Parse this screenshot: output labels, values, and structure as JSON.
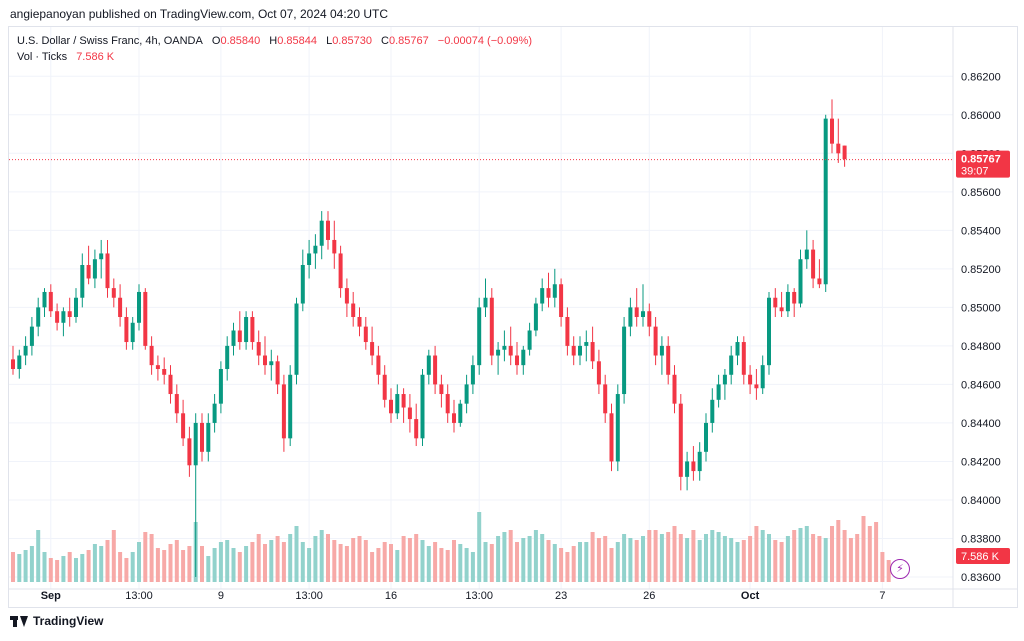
{
  "header": {
    "published": "angiepanoyan published on TradingView.com, Oct 07, 2024 04:20 UTC"
  },
  "legend": {
    "symbol": "U.S. Dollar / Swiss Franc, 4h, OANDA",
    "o_label": "O",
    "o": "0.85840",
    "h_label": "H",
    "h": "0.85844",
    "l_label": "L",
    "l": "0.85730",
    "c_label": "C",
    "c": "0.85767",
    "change": "−0.00074 (−0.09%)",
    "vol_label": "Vol · Ticks",
    "vol": "7.586 K"
  },
  "price_tag": {
    "price": "0.85767",
    "countdown": "39:07"
  },
  "volume_tag": "7.586 K",
  "footer": {
    "brand": "TradingView"
  },
  "colors": {
    "up": "#089981",
    "down": "#f23645",
    "up_vol": "#92d2cc",
    "down_vol": "#f7a9a7",
    "grid": "#f0f3fa",
    "text": "#131722"
  },
  "icons": {
    "alert": "lightning-icon",
    "logo": "tradingview-logo-icon"
  },
  "chart_data": {
    "type": "candlestick",
    "symbol": "U.S. Dollar / Swiss Franc",
    "timeframe": "4h",
    "ylim": [
      0.836,
      0.863
    ],
    "y_ticks": [
      "0.86200",
      "0.86000",
      "0.85800",
      "0.85600",
      "0.85400",
      "0.85200",
      "0.85000",
      "0.84800",
      "0.84600",
      "0.84400",
      "0.84200",
      "0.84000",
      "0.83800",
      "0.83600"
    ],
    "x_ticks": [
      {
        "label": "Sep",
        "index": 6
      },
      {
        "label": "13:00",
        "index": 20
      },
      {
        "label": "9",
        "index": 33
      },
      {
        "label": "13:00",
        "index": 47
      },
      {
        "label": "16",
        "index": 60
      },
      {
        "label": "13:00",
        "index": 74
      },
      {
        "label": "23",
        "index": 87
      },
      {
        "label": "26",
        "index": 101
      },
      {
        "label": "Oct",
        "index": 117
      },
      {
        "label": "7",
        "index": 138
      }
    ],
    "last_price": 0.85767,
    "candles": [
      [
        0.8473,
        0.848,
        0.8465,
        0.8468
      ],
      [
        0.8468,
        0.8478,
        0.8463,
        0.8475
      ],
      [
        0.8475,
        0.8485,
        0.847,
        0.848
      ],
      [
        0.848,
        0.8495,
        0.8475,
        0.849
      ],
      [
        0.849,
        0.8505,
        0.8485,
        0.85
      ],
      [
        0.85,
        0.851,
        0.8495,
        0.8508
      ],
      [
        0.8508,
        0.8512,
        0.8495,
        0.8498
      ],
      [
        0.8498,
        0.8502,
        0.8488,
        0.8492
      ],
      [
        0.8492,
        0.85,
        0.8485,
        0.8498
      ],
      [
        0.8498,
        0.8505,
        0.849,
        0.8495
      ],
      [
        0.8495,
        0.851,
        0.8492,
        0.8505
      ],
      [
        0.8505,
        0.8528,
        0.85,
        0.8522
      ],
      [
        0.8522,
        0.8532,
        0.8512,
        0.8515
      ],
      [
        0.8515,
        0.853,
        0.851,
        0.8525
      ],
      [
        0.8525,
        0.8535,
        0.8515,
        0.8528
      ],
      [
        0.8528,
        0.8535,
        0.8505,
        0.851
      ],
      [
        0.851,
        0.8515,
        0.85,
        0.8505
      ],
      [
        0.8505,
        0.8512,
        0.849,
        0.8495
      ],
      [
        0.8495,
        0.85,
        0.8478,
        0.8482
      ],
      [
        0.8482,
        0.8495,
        0.8478,
        0.8492
      ],
      [
        0.8492,
        0.8512,
        0.8488,
        0.8508
      ],
      [
        0.8508,
        0.851,
        0.8478,
        0.848
      ],
      [
        0.848,
        0.8485,
        0.8465,
        0.847
      ],
      [
        0.847,
        0.8475,
        0.8462,
        0.8468
      ],
      [
        0.8468,
        0.8474,
        0.846,
        0.8465
      ],
      [
        0.8465,
        0.847,
        0.845,
        0.8455
      ],
      [
        0.8455,
        0.846,
        0.844,
        0.8445
      ],
      [
        0.8445,
        0.8452,
        0.8428,
        0.8432
      ],
      [
        0.8432,
        0.8438,
        0.8412,
        0.8418
      ],
      [
        0.8418,
        0.8445,
        0.836,
        0.844
      ],
      [
        0.844,
        0.8445,
        0.842,
        0.8425
      ],
      [
        0.8425,
        0.8445,
        0.842,
        0.844
      ],
      [
        0.844,
        0.8455,
        0.8435,
        0.845
      ],
      [
        0.845,
        0.8472,
        0.8445,
        0.8468
      ],
      [
        0.8468,
        0.8485,
        0.8462,
        0.848
      ],
      [
        0.848,
        0.8492,
        0.8475,
        0.8488
      ],
      [
        0.8488,
        0.8498,
        0.8478,
        0.8482
      ],
      [
        0.8482,
        0.8498,
        0.8478,
        0.8495
      ],
      [
        0.8495,
        0.8498,
        0.8478,
        0.8482
      ],
      [
        0.8482,
        0.8488,
        0.847,
        0.8475
      ],
      [
        0.8475,
        0.8485,
        0.8465,
        0.847
      ],
      [
        0.847,
        0.8478,
        0.8462,
        0.8472
      ],
      [
        0.8472,
        0.8475,
        0.8455,
        0.846
      ],
      [
        0.846,
        0.8465,
        0.8425,
        0.8432
      ],
      [
        0.8432,
        0.847,
        0.8428,
        0.8465
      ],
      [
        0.8465,
        0.8505,
        0.846,
        0.8502
      ],
      [
        0.8502,
        0.853,
        0.8498,
        0.8522
      ],
      [
        0.8522,
        0.8535,
        0.8515,
        0.8528
      ],
      [
        0.8528,
        0.8538,
        0.852,
        0.8532
      ],
      [
        0.8532,
        0.855,
        0.8525,
        0.8545
      ],
      [
        0.8545,
        0.855,
        0.853,
        0.8535
      ],
      [
        0.8535,
        0.8545,
        0.852,
        0.8528
      ],
      [
        0.8528,
        0.8532,
        0.8505,
        0.851
      ],
      [
        0.851,
        0.8515,
        0.8495,
        0.8502
      ],
      [
        0.8502,
        0.8508,
        0.849,
        0.8495
      ],
      [
        0.8495,
        0.85,
        0.8485,
        0.849
      ],
      [
        0.849,
        0.8495,
        0.8478,
        0.8482
      ],
      [
        0.8482,
        0.849,
        0.847,
        0.8475
      ],
      [
        0.8475,
        0.848,
        0.846,
        0.8465
      ],
      [
        0.8465,
        0.847,
        0.8448,
        0.8452
      ],
      [
        0.8452,
        0.8458,
        0.844,
        0.8445
      ],
      [
        0.8445,
        0.846,
        0.8442,
        0.8455
      ],
      [
        0.8455,
        0.8458,
        0.844,
        0.8448
      ],
      [
        0.8448,
        0.8455,
        0.8435,
        0.8442
      ],
      [
        0.8442,
        0.845,
        0.8428,
        0.8432
      ],
      [
        0.8432,
        0.8468,
        0.8428,
        0.8465
      ],
      [
        0.8465,
        0.8478,
        0.846,
        0.8475
      ],
      [
        0.8475,
        0.848,
        0.8455,
        0.846
      ],
      [
        0.846,
        0.8465,
        0.8448,
        0.8455
      ],
      [
        0.8455,
        0.846,
        0.844,
        0.8445
      ],
      [
        0.8445,
        0.8452,
        0.8435,
        0.844
      ],
      [
        0.844,
        0.8452,
        0.8438,
        0.845
      ],
      [
        0.845,
        0.8465,
        0.8445,
        0.846
      ],
      [
        0.846,
        0.8475,
        0.8455,
        0.847
      ],
      [
        0.847,
        0.8505,
        0.8465,
        0.85
      ],
      [
        0.85,
        0.8515,
        0.8495,
        0.8505
      ],
      [
        0.8505,
        0.851,
        0.847,
        0.8475
      ],
      [
        0.8475,
        0.8482,
        0.8465,
        0.8478
      ],
      [
        0.8478,
        0.8488,
        0.8472,
        0.848
      ],
      [
        0.848,
        0.849,
        0.847,
        0.8475
      ],
      [
        0.8475,
        0.8482,
        0.8465,
        0.847
      ],
      [
        0.847,
        0.848,
        0.8465,
        0.8478
      ],
      [
        0.8478,
        0.8492,
        0.8475,
        0.8488
      ],
      [
        0.8488,
        0.8505,
        0.8485,
        0.8502
      ],
      [
        0.8502,
        0.8515,
        0.8498,
        0.851
      ],
      [
        0.851,
        0.8518,
        0.85,
        0.8505
      ],
      [
        0.8505,
        0.852,
        0.85,
        0.8512
      ],
      [
        0.8512,
        0.8515,
        0.849,
        0.8495
      ],
      [
        0.8495,
        0.85,
        0.8475,
        0.848
      ],
      [
        0.848,
        0.8485,
        0.847,
        0.8475
      ],
      [
        0.8475,
        0.8485,
        0.847,
        0.848
      ],
      [
        0.848,
        0.8488,
        0.8472,
        0.8482
      ],
      [
        0.8482,
        0.849,
        0.8468,
        0.8472
      ],
      [
        0.8472,
        0.8478,
        0.8455,
        0.846
      ],
      [
        0.846,
        0.8465,
        0.844,
        0.8445
      ],
      [
        0.8445,
        0.845,
        0.8415,
        0.842
      ],
      [
        0.842,
        0.846,
        0.8415,
        0.8455
      ],
      [
        0.8455,
        0.8495,
        0.845,
        0.849
      ],
      [
        0.849,
        0.8505,
        0.8485,
        0.85
      ],
      [
        0.85,
        0.851,
        0.849,
        0.8495
      ],
      [
        0.8495,
        0.8512,
        0.849,
        0.8498
      ],
      [
        0.8498,
        0.8502,
        0.8485,
        0.849
      ],
      [
        0.849,
        0.8495,
        0.847,
        0.8475
      ],
      [
        0.8475,
        0.8485,
        0.8465,
        0.848
      ],
      [
        0.848,
        0.8485,
        0.846,
        0.8465
      ],
      [
        0.8465,
        0.847,
        0.8445,
        0.845
      ],
      [
        0.845,
        0.8455,
        0.8405,
        0.8412
      ],
      [
        0.8412,
        0.8425,
        0.8405,
        0.842
      ],
      [
        0.842,
        0.8428,
        0.841,
        0.8415
      ],
      [
        0.8415,
        0.843,
        0.841,
        0.8425
      ],
      [
        0.8425,
        0.8445,
        0.842,
        0.844
      ],
      [
        0.844,
        0.8458,
        0.8435,
        0.8452
      ],
      [
        0.8452,
        0.8465,
        0.8448,
        0.846
      ],
      [
        0.846,
        0.8468,
        0.8452,
        0.8465
      ],
      [
        0.8465,
        0.848,
        0.846,
        0.8475
      ],
      [
        0.8475,
        0.8485,
        0.847,
        0.8482
      ],
      [
        0.8482,
        0.8485,
        0.846,
        0.8465
      ],
      [
        0.8465,
        0.847,
        0.8455,
        0.846
      ],
      [
        0.846,
        0.8468,
        0.8452,
        0.8458
      ],
      [
        0.8458,
        0.8475,
        0.8455,
        0.847
      ],
      [
        0.847,
        0.8508,
        0.8465,
        0.8505
      ],
      [
        0.8505,
        0.851,
        0.8495,
        0.85
      ],
      [
        0.85,
        0.8508,
        0.8495,
        0.8498
      ],
      [
        0.8498,
        0.8512,
        0.8495,
        0.8508
      ],
      [
        0.8508,
        0.851,
        0.8495,
        0.8502
      ],
      [
        0.8502,
        0.853,
        0.85,
        0.8525
      ],
      [
        0.8525,
        0.854,
        0.852,
        0.853
      ],
      [
        0.853,
        0.8535,
        0.851,
        0.8515
      ],
      [
        0.8515,
        0.8525,
        0.851,
        0.8512
      ],
      [
        0.8512,
        0.86,
        0.8508,
        0.8598
      ],
      [
        0.8598,
        0.8608,
        0.858,
        0.8585
      ],
      [
        0.8585,
        0.8598,
        0.8575,
        0.858
      ],
      [
        0.8584,
        0.8584,
        0.8573,
        0.8577
      ]
    ],
    "volumes": [
      0.3,
      0.28,
      0.32,
      0.36,
      0.52,
      0.3,
      0.24,
      0.22,
      0.26,
      0.3,
      0.24,
      0.28,
      0.32,
      0.38,
      0.36,
      0.42,
      0.52,
      0.3,
      0.24,
      0.3,
      0.4,
      0.5,
      0.48,
      0.34,
      0.32,
      0.38,
      0.42,
      0.32,
      0.36,
      0.6,
      0.36,
      0.26,
      0.34,
      0.4,
      0.42,
      0.34,
      0.3,
      0.36,
      0.4,
      0.48,
      0.38,
      0.42,
      0.46,
      0.4,
      0.48,
      0.56,
      0.4,
      0.34,
      0.46,
      0.52,
      0.48,
      0.42,
      0.38,
      0.36,
      0.44,
      0.46,
      0.42,
      0.3,
      0.34,
      0.4,
      0.38,
      0.32,
      0.46,
      0.44,
      0.48,
      0.42,
      0.36,
      0.4,
      0.34,
      0.32,
      0.42,
      0.38,
      0.34,
      0.3,
      0.7,
      0.4,
      0.38,
      0.46,
      0.5,
      0.52,
      0.4,
      0.44,
      0.46,
      0.52,
      0.48,
      0.42,
      0.38,
      0.34,
      0.3,
      0.36,
      0.4,
      0.4,
      0.5,
      0.44,
      0.46,
      0.34,
      0.4,
      0.48,
      0.44,
      0.42,
      0.46,
      0.52,
      0.52,
      0.48,
      0.5,
      0.56,
      0.48,
      0.44,
      0.52,
      0.42,
      0.48,
      0.52,
      0.5,
      0.46,
      0.44,
      0.4,
      0.42,
      0.46,
      0.56,
      0.52,
      0.48,
      0.42,
      0.4,
      0.46,
      0.52,
      0.54,
      0.56,
      0.48,
      0.46,
      0.44,
      0.56,
      0.62,
      0.52,
      0.44,
      0.48,
      0.66,
      0.56,
      0.6,
      0.3,
      0.22
    ]
  }
}
